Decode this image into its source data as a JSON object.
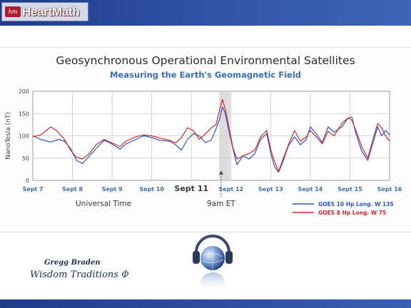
{
  "header": {
    "logo_text": "HeartMath",
    "logo_mark_text": "hm"
  },
  "colors": {
    "goes10": "#2d55c8",
    "goes8": "#d22a2a",
    "highlight": "#d0d0d0",
    "bar": "#253f90"
  },
  "footer": {
    "author": "Gregg Braden",
    "subtitle": "Wisdom Traditions Φ"
  },
  "chart_data": {
    "type": "line",
    "title": "Geosynchronous Operational Environmental Satellites",
    "subtitle": "Measuring the Earth's Geomagnetic Field",
    "ylabel": "NanoTesla (nT)",
    "xlabel": "Universal Time",
    "ylim": [
      0,
      200
    ],
    "xlim": [
      0,
      9
    ],
    "yticks": [
      0,
      50,
      100,
      150,
      200
    ],
    "xticks": [
      {
        "x": 0,
        "label": "Sept 7"
      },
      {
        "x": 1,
        "label": "Sept 8"
      },
      {
        "x": 2,
        "label": "Sept 9"
      },
      {
        "x": 3,
        "label": "Sept 10"
      },
      {
        "x": 4,
        "label": "Sept 11"
      },
      {
        "x": 5,
        "label": "Sept 12"
      },
      {
        "x": 6,
        "label": "Sept 13"
      },
      {
        "x": 7,
        "label": "Sept 14"
      },
      {
        "x": 8,
        "label": "Sept 15"
      },
      {
        "x": 9,
        "label": "Sept 16"
      }
    ],
    "highlight": {
      "from": 4.7,
      "to": 4.98
    },
    "annotation": {
      "x": 4.75,
      "label": "9am ET"
    },
    "grid": true,
    "legend_position": "bottom-right",
    "series": [
      {
        "name": "GOES 10 Hp Long. W 135",
        "color": "#2d55c8",
        "points": [
          [
            0,
            100
          ],
          [
            0.2,
            92
          ],
          [
            0.45,
            86
          ],
          [
            0.65,
            92
          ],
          [
            0.8,
            88
          ],
          [
            0.95,
            72
          ],
          [
            1.1,
            45
          ],
          [
            1.25,
            38
          ],
          [
            1.4,
            52
          ],
          [
            1.6,
            72
          ],
          [
            1.8,
            90
          ],
          [
            2.0,
            82
          ],
          [
            2.2,
            70
          ],
          [
            2.35,
            82
          ],
          [
            2.6,
            92
          ],
          [
            2.8,
            100
          ],
          [
            3.0,
            96
          ],
          [
            3.2,
            90
          ],
          [
            3.45,
            88
          ],
          [
            3.6,
            80
          ],
          [
            3.75,
            68
          ],
          [
            3.9,
            92
          ],
          [
            4.05,
            105
          ],
          [
            4.2,
            100
          ],
          [
            4.35,
            85
          ],
          [
            4.5,
            90
          ],
          [
            4.62,
            115
          ],
          [
            4.72,
            140
          ],
          [
            4.78,
            165
          ],
          [
            4.85,
            152
          ],
          [
            4.95,
            110
          ],
          [
            5.05,
            70
          ],
          [
            5.15,
            35
          ],
          [
            5.3,
            55
          ],
          [
            5.45,
            48
          ],
          [
            5.6,
            60
          ],
          [
            5.75,
            92
          ],
          [
            5.9,
            105
          ],
          [
            6.0,
            62
          ],
          [
            6.1,
            30
          ],
          [
            6.2,
            18
          ],
          [
            6.3,
            40
          ],
          [
            6.45,
            78
          ],
          [
            6.6,
            98
          ],
          [
            6.75,
            80
          ],
          [
            6.9,
            92
          ],
          [
            7.0,
            120
          ],
          [
            7.15,
            105
          ],
          [
            7.3,
            85
          ],
          [
            7.45,
            120
          ],
          [
            7.6,
            108
          ],
          [
            7.8,
            120
          ],
          [
            7.95,
            140
          ],
          [
            8.05,
            142
          ],
          [
            8.15,
            105
          ],
          [
            8.3,
            65
          ],
          [
            8.45,
            45
          ],
          [
            8.6,
            90
          ],
          [
            8.7,
            120
          ],
          [
            8.8,
            100
          ],
          [
            8.9,
            112
          ],
          [
            9.0,
            102
          ]
        ]
      },
      {
        "name": "GOES 8 Hp Long. W 75",
        "color": "#d22a2a",
        "points": [
          [
            0,
            98
          ],
          [
            0.2,
            102
          ],
          [
            0.45,
            120
          ],
          [
            0.6,
            112
          ],
          [
            0.8,
            92
          ],
          [
            0.95,
            68
          ],
          [
            1.1,
            52
          ],
          [
            1.25,
            48
          ],
          [
            1.4,
            58
          ],
          [
            1.6,
            80
          ],
          [
            1.8,
            92
          ],
          [
            2.0,
            84
          ],
          [
            2.2,
            76
          ],
          [
            2.35,
            88
          ],
          [
            2.6,
            98
          ],
          [
            2.8,
            102
          ],
          [
            3.0,
            100
          ],
          [
            3.2,
            95
          ],
          [
            3.45,
            90
          ],
          [
            3.6,
            84
          ],
          [
            3.75,
            96
          ],
          [
            3.9,
            118
          ],
          [
            4.05,
            112
          ],
          [
            4.2,
            92
          ],
          [
            4.35,
            104
          ],
          [
            4.5,
            118
          ],
          [
            4.62,
            125
          ],
          [
            4.72,
            160
          ],
          [
            4.78,
            182
          ],
          [
            4.85,
            162
          ],
          [
            4.95,
            118
          ],
          [
            5.05,
            72
          ],
          [
            5.15,
            48
          ],
          [
            5.3,
            55
          ],
          [
            5.45,
            60
          ],
          [
            5.6,
            68
          ],
          [
            5.75,
            98
          ],
          [
            5.9,
            112
          ],
          [
            6.0,
            70
          ],
          [
            6.1,
            42
          ],
          [
            6.2,
            20
          ],
          [
            6.3,
            45
          ],
          [
            6.45,
            80
          ],
          [
            6.6,
            112
          ],
          [
            6.75,
            88
          ],
          [
            6.9,
            98
          ],
          [
            7.0,
            112
          ],
          [
            7.15,
            98
          ],
          [
            7.3,
            82
          ],
          [
            7.45,
            110
          ],
          [
            7.6,
            100
          ],
          [
            7.8,
            128
          ],
          [
            7.95,
            140
          ],
          [
            8.05,
            135
          ],
          [
            8.15,
            112
          ],
          [
            8.3,
            75
          ],
          [
            8.45,
            50
          ],
          [
            8.6,
            98
          ],
          [
            8.7,
            128
          ],
          [
            8.8,
            118
          ],
          [
            8.9,
            100
          ],
          [
            9.0,
            88
          ]
        ]
      }
    ]
  }
}
